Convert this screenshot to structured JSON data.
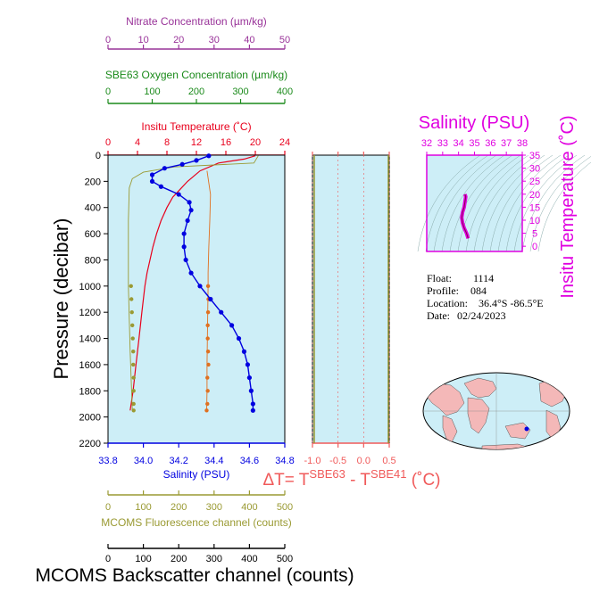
{
  "info": {
    "float_label": "Float:",
    "float_value": "1114",
    "profile_label": "Profile:",
    "profile_value": "084",
    "location_label": "Location:",
    "location_value": "36.4°S  -86.5°E",
    "date_label": "Date:",
    "date_value": "02/24/2023"
  },
  "colors": {
    "nitrate": "#993399",
    "oxygen": "#1a8a1a",
    "temperature": "#e8001c",
    "salinity": "#0000e0",
    "fluorescence": "#9a9a33",
    "backscatter": "#000000",
    "backscatter_dots": "#e07020",
    "delta_t": "#f05a5a",
    "ts_magenta": "#e000e0",
    "plot_bg": "#cdeef7",
    "land": "#f4b8b8"
  },
  "chart_data": [
    {
      "type": "line",
      "name": "profile",
      "y_axis": {
        "label": "Pressure (decibar)",
        "range": [
          2200,
          0
        ],
        "ticks": [
          0,
          200,
          400,
          600,
          800,
          1000,
          1200,
          1400,
          1600,
          1800,
          2000,
          2200
        ]
      },
      "axes": {
        "nitrate": {
          "label": "Nitrate Concentration (µm/kg)",
          "range": [
            0,
            50
          ],
          "ticks": [
            0,
            10,
            20,
            30,
            40,
            50
          ]
        },
        "oxygen": {
          "label": "SBE63 Oxygen Concentration (µm/kg)",
          "range": [
            0,
            400
          ],
          "ticks": [
            0,
            100,
            200,
            300,
            400
          ]
        },
        "temperature": {
          "label": "Insitu Temperature (˚C)",
          "range": [
            0,
            24
          ],
          "ticks": [
            0,
            4,
            8,
            12,
            16,
            20,
            24
          ]
        },
        "salinity": {
          "label": "Salinity (PSU)",
          "range": [
            33.8,
            34.8
          ],
          "ticks": [
            33.8,
            34.0,
            34.2,
            34.4,
            34.6,
            34.8
          ]
        },
        "fluorescence": {
          "label": "MCOMS Fluorescence channel (counts)",
          "range": [
            0,
            500
          ],
          "ticks": [
            0,
            100,
            200,
            300,
            400,
            500
          ]
        },
        "backscatter": {
          "label": "MCOMS Backscatter channel (counts)",
          "range": [
            0,
            500
          ],
          "ticks": [
            0,
            100,
            200,
            300,
            400,
            500
          ]
        }
      },
      "series": {
        "temperature": [
          [
            20.0,
            5
          ],
          [
            18.5,
            30
          ],
          [
            15.0,
            60
          ],
          [
            12.5,
            120
          ],
          [
            10.8,
            200
          ],
          [
            9.8,
            260
          ],
          [
            8.8,
            320
          ],
          [
            8.0,
            400
          ],
          [
            7.2,
            500
          ],
          [
            6.6,
            600
          ],
          [
            6.1,
            700
          ],
          [
            5.7,
            800
          ],
          [
            5.3,
            900
          ],
          [
            5.0,
            1000
          ],
          [
            4.6,
            1200
          ],
          [
            4.2,
            1400
          ],
          [
            3.8,
            1600
          ],
          [
            3.4,
            1800
          ],
          [
            3.0,
            1950
          ]
        ],
        "salinity": [
          [
            34.37,
            5
          ],
          [
            34.3,
            40
          ],
          [
            34.22,
            70
          ],
          [
            34.12,
            100
          ],
          [
            34.05,
            150
          ],
          [
            34.05,
            200
          ],
          [
            34.1,
            240
          ],
          [
            34.2,
            300
          ],
          [
            34.26,
            360
          ],
          [
            34.27,
            420
          ],
          [
            34.25,
            500
          ],
          [
            34.23,
            600
          ],
          [
            34.23,
            700
          ],
          [
            34.24,
            800
          ],
          [
            34.27,
            900
          ],
          [
            34.32,
            1000
          ],
          [
            34.38,
            1100
          ],
          [
            34.44,
            1200
          ],
          [
            34.5,
            1300
          ],
          [
            34.54,
            1400
          ],
          [
            34.57,
            1500
          ],
          [
            34.59,
            1600
          ],
          [
            34.6,
            1700
          ],
          [
            34.61,
            1800
          ],
          [
            34.62,
            1900
          ],
          [
            34.62,
            1950
          ]
        ],
        "oxygen": [
          [
            340,
            5
          ],
          [
            330,
            60
          ],
          [
            150,
            90
          ],
          [
            80,
            130
          ],
          [
            55,
            180
          ],
          [
            48,
            250
          ],
          [
            46,
            500
          ],
          [
            46,
            1000
          ],
          [
            50,
            1500
          ],
          [
            55,
            1950
          ]
        ],
        "oxygen_dots": [
          [
            52,
            1000
          ],
          [
            53,
            1100
          ],
          [
            54,
            1200
          ],
          [
            55,
            1300
          ],
          [
            56,
            1400
          ],
          [
            57,
            1500
          ],
          [
            57,
            1600
          ],
          [
            58,
            1700
          ],
          [
            58,
            1800
          ],
          [
            58,
            1900
          ],
          [
            58,
            1950
          ]
        ],
        "backscatter": [
          [
            280,
            120
          ],
          [
            290,
            300
          ],
          [
            288,
            500
          ],
          [
            285,
            700
          ],
          [
            283,
            900
          ],
          [
            283,
            1000
          ],
          [
            282,
            1200
          ],
          [
            281,
            1400
          ],
          [
            280,
            1600
          ],
          [
            280,
            1800
          ],
          [
            279,
            1950
          ]
        ],
        "backscatter_dots": [
          [
            283,
            1000
          ],
          [
            284,
            1100
          ],
          [
            283,
            1200
          ],
          [
            282,
            1300
          ],
          [
            282,
            1400
          ],
          [
            283,
            1500
          ],
          [
            284,
            1600
          ],
          [
            281,
            1700
          ],
          [
            282,
            1800
          ],
          [
            281,
            1900
          ],
          [
            279,
            1950
          ]
        ]
      }
    },
    {
      "type": "line",
      "name": "delta_t",
      "title": "ΔT= T",
      "title_sup1": "SBE63",
      "title_mid": " - T",
      "title_sup2": "SBE41",
      "title_unit": " (˚C)",
      "x_range": [
        -1.0,
        0.5
      ],
      "x_ticks": [
        "-1.0",
        "-0.5",
        "0.0",
        "0.5"
      ],
      "x_tick_values": [
        -1.0,
        -0.5,
        0.0,
        0.5
      ]
    },
    {
      "type": "scatter",
      "name": "ts_diagram",
      "xlabel": "Salinity (PSU)",
      "ylabel": "Insitu Temperature (˚C)",
      "x_range": [
        32,
        38
      ],
      "y_range": [
        -2,
        35
      ],
      "x_ticks": [
        32,
        33,
        34,
        35,
        36,
        37,
        38
      ],
      "y_ticks": [
        0,
        5,
        10,
        15,
        20,
        25,
        30,
        35
      ],
      "points": [
        [
          34.6,
          3
        ],
        [
          34.5,
          5
        ],
        [
          34.35,
          7
        ],
        [
          34.25,
          9
        ],
        [
          34.2,
          11
        ],
        [
          34.25,
          13
        ],
        [
          34.35,
          15
        ],
        [
          34.4,
          17
        ],
        [
          34.45,
          19
        ],
        [
          34.4,
          20
        ]
      ]
    },
    {
      "type": "map",
      "name": "world_map",
      "float_position": [
        -86.5,
        -36.4
      ]
    }
  ]
}
